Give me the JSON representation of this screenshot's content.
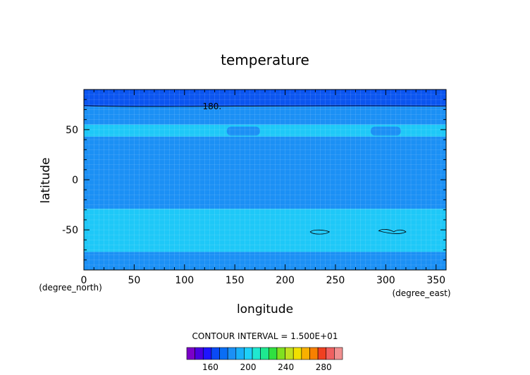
{
  "chart_data": {
    "type": "heatmap",
    "title": "temperature",
    "xlabel": "longitude",
    "ylabel": "latitude",
    "x_unit": "(degree_east)",
    "y_unit": "(degree_north)",
    "xlim": [
      0,
      360
    ],
    "ylim": [
      -90,
      90
    ],
    "x_ticks": [
      0,
      50,
      100,
      150,
      200,
      250,
      300,
      350
    ],
    "y_ticks": [
      -50,
      0,
      50
    ],
    "contour_interval_text": "CONTOUR INTERVAL = 1.500E+01",
    "contour_labels": [
      {
        "value": "180.",
        "lon": 118,
        "lat": 73
      }
    ],
    "bands": [
      {
        "lat_from": 73,
        "lat_to": 90,
        "color": "#0a55f0"
      },
      {
        "lat_from": 55,
        "lat_to": 73,
        "color": "#1b90f5"
      },
      {
        "lat_from": 43,
        "lat_to": 55,
        "color": "#1ec8f8"
      },
      {
        "lat_from": -29,
        "lat_to": 43,
        "color": "#1b90f5"
      },
      {
        "lat_from": -72,
        "lat_to": -29,
        "color": "#1ec8f8"
      },
      {
        "lat_from": -90,
        "lat_to": -72,
        "color": "#1b90f5"
      }
    ],
    "colorbar": {
      "ticks": [
        160,
        200,
        240,
        280
      ],
      "min": 135,
      "max": 300,
      "colors": [
        "#7a00c8",
        "#4a00e0",
        "#1e14ff",
        "#0a4af5",
        "#0a6ef5",
        "#1b90f5",
        "#1ab0f8",
        "#1ed0f8",
        "#20e8d0",
        "#1ee890",
        "#30e040",
        "#80e020",
        "#c0e020",
        "#f0e000",
        "#f8b000",
        "#f88000",
        "#f04020",
        "#f06060",
        "#f09090"
      ]
    }
  }
}
